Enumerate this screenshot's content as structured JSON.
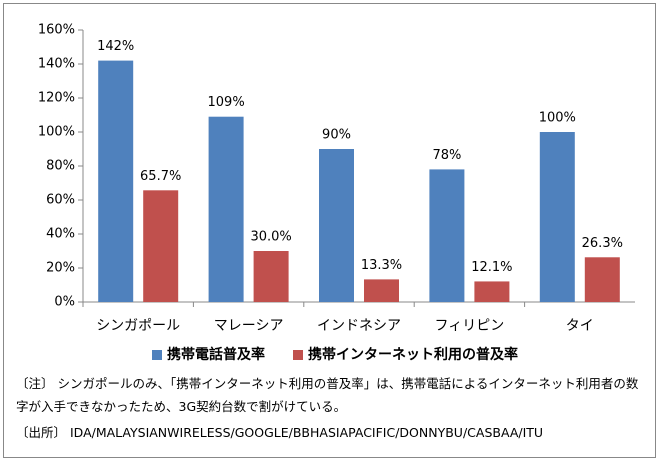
{
  "chart_data": {
    "type": "bar",
    "categories": [
      "シンガポール",
      "マレーシア",
      "インドネシア",
      "フィリピン",
      "タイ"
    ],
    "series": [
      {
        "name": "携帯電話普及率",
        "color": "#4f81bd",
        "values": [
          142,
          109,
          90,
          78,
          100
        ],
        "value_labels": [
          "142%",
          "109%",
          "90%",
          "78%",
          "100%"
        ]
      },
      {
        "name": "携帯インターネット利用の普及率",
        "color": "#c0504d",
        "values": [
          65.7,
          30.0,
          13.3,
          12.1,
          26.3
        ],
        "value_labels": [
          "65.7%",
          "30.0%",
          "13.3%",
          "12.1%",
          "26.3%"
        ]
      }
    ],
    "ylim": [
      0,
      160
    ],
    "yticks": [
      {
        "value": 0,
        "label": "0%"
      },
      {
        "value": 20,
        "label": "20%"
      },
      {
        "value": 40,
        "label": "40%"
      },
      {
        "value": 60,
        "label": "60%"
      },
      {
        "value": 80,
        "label": "80%"
      },
      {
        "value": 100,
        "label": "100%"
      },
      {
        "value": 120,
        "label": "120%"
      },
      {
        "value": 140,
        "label": "140%"
      },
      {
        "value": 160,
        "label": "160%"
      }
    ],
    "grid": false,
    "legend": "bottom"
  },
  "notes": [
    "〔注〕 シンガポールのみ、「携帯インターネット利用の普及率」は、携帯電話によるインターネット利用者の数字が入手できなかったため、3G契約台数で割がけている。",
    "〔出所〕 IDA/MALAYSIANWIRELESS/GOOGLE/BBHASIAPACIFIC/DONNYBU/CASBAA/ITU"
  ]
}
